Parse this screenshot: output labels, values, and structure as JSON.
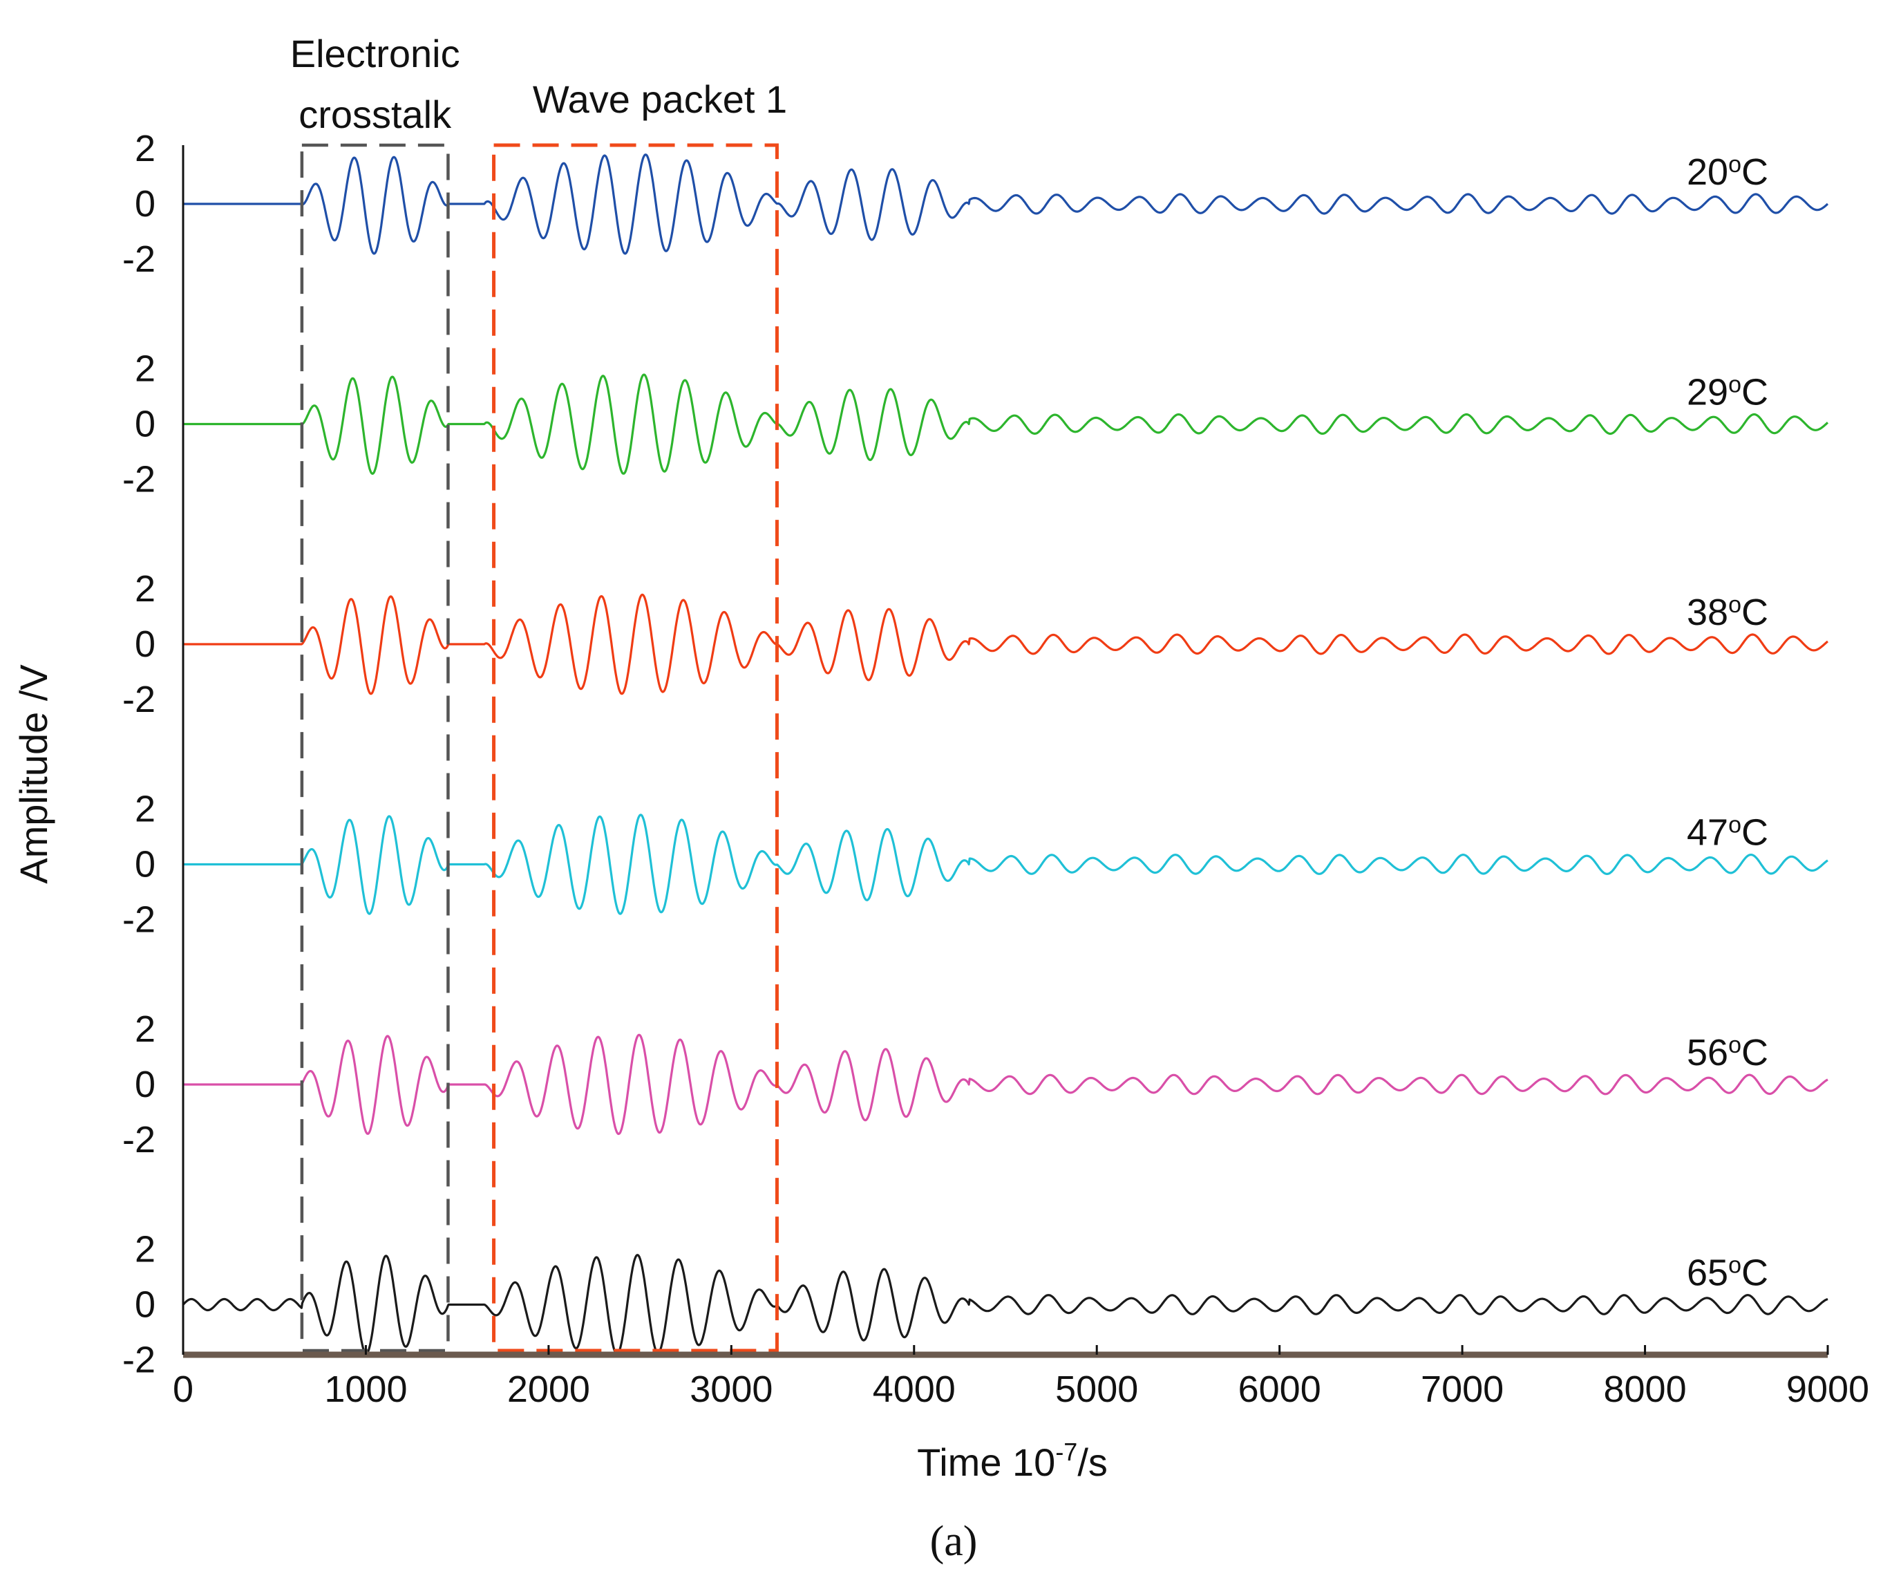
{
  "chart_data": {
    "type": "line",
    "xlabel": "Time 10",
    "xlabel_sup": "-7",
    "xlabel_suffix": "/s",
    "ylabel": "Amplitude /V",
    "xlim": [
      0,
      9000
    ],
    "x_ticks": [
      "0",
      "1000",
      "2000",
      "3000",
      "4000",
      "5000",
      "6000",
      "7000",
      "8000",
      "9000"
    ],
    "y_ticks_per_trace": [
      "2",
      "0",
      "-2"
    ],
    "ylim_per_trace": [
      -2,
      2
    ],
    "caption": "(a)",
    "series": [
      {
        "name": "20°C",
        "label_num": "20",
        "label_deg": "o",
        "label_unit": "C",
        "color": "#1f4fa8"
      },
      {
        "name": "29°C",
        "label_num": "29",
        "label_deg": "o",
        "label_unit": "C",
        "color": "#2db52d"
      },
      {
        "name": "38°C",
        "label_num": "38",
        "label_deg": "o",
        "label_unit": "C",
        "color": "#f03c14"
      },
      {
        "name": "47°C",
        "label_num": "47",
        "label_deg": "o",
        "label_unit": "C",
        "color": "#1fc0d6"
      },
      {
        "name": "56°C",
        "label_num": "56",
        "label_deg": "o",
        "label_unit": "C",
        "color": "#d94fa8"
      },
      {
        "name": "65°C",
        "label_num": "65",
        "label_deg": "o",
        "label_unit": "C",
        "color": "#1a1a1a"
      }
    ],
    "annotations": [
      {
        "line1": "Electronic",
        "line2": "crosstalk",
        "x_range": [
          650,
          1450
        ],
        "color": "#555555",
        "style": "dashed"
      },
      {
        "line1": "Wave packet 1",
        "line2": "",
        "x_range": [
          1700,
          3250
        ],
        "color": "#f04a1a",
        "style": "dashed"
      }
    ],
    "signal_segments": [
      {
        "start": 650,
        "end": 1450,
        "peak_amplitude": 1.8,
        "period": 220
      },
      {
        "start": 1650,
        "end": 3250,
        "peak_amplitude": 1.8,
        "period": 225
      },
      {
        "start": 3250,
        "end": 4300,
        "peak_amplitude": 1.3,
        "period": 225
      },
      {
        "start": 4300,
        "end": 9000,
        "peak_amplitude": 0.35,
        "period": 225
      }
    ]
  }
}
